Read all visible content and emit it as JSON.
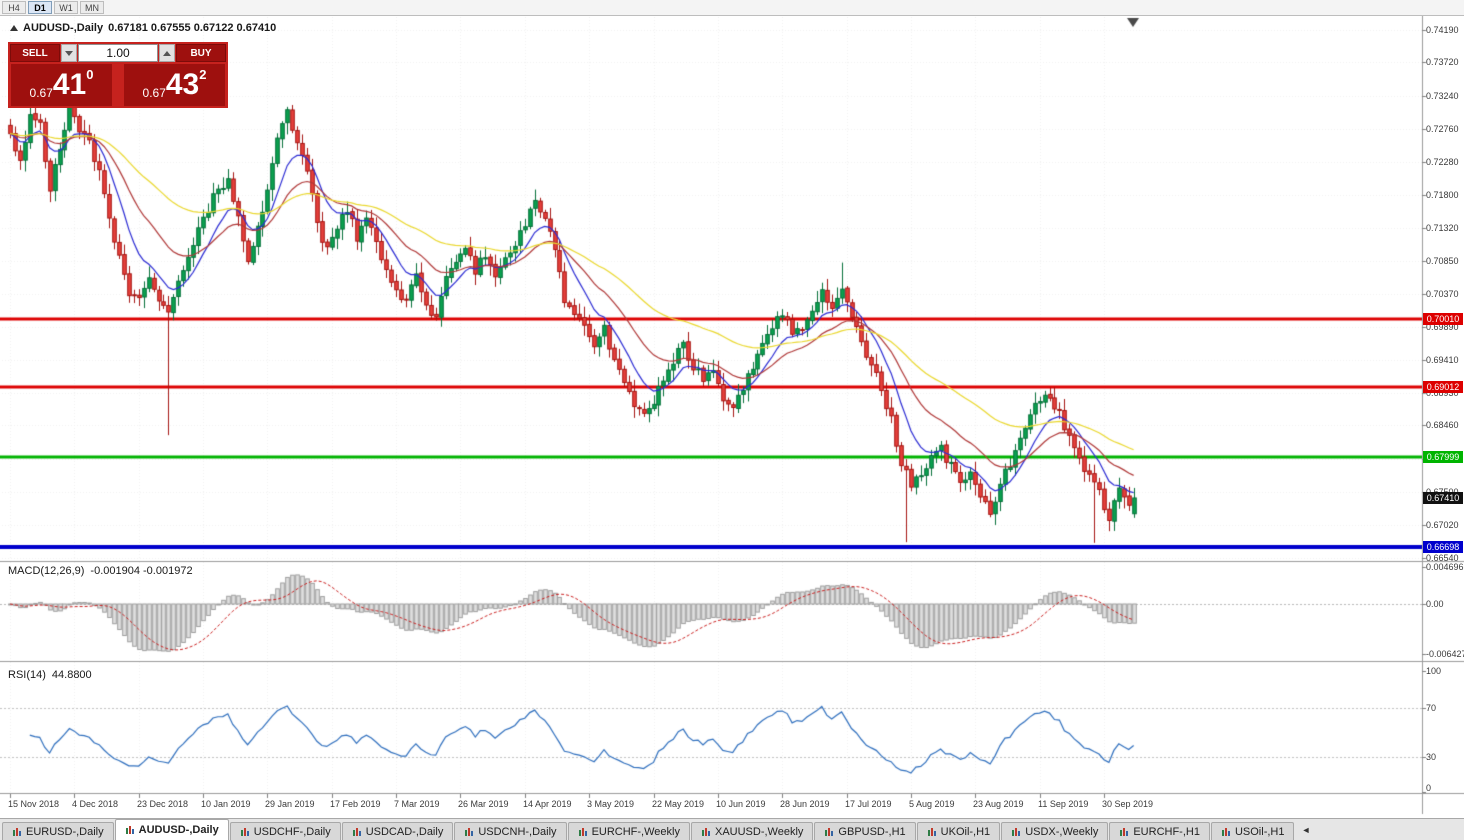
{
  "toolbar": {
    "periods": [
      "H4",
      "D1",
      "W1",
      "MN"
    ],
    "active_period": "D1"
  },
  "header": {
    "symbol": "AUDUSD-,Daily",
    "ohlc": "0.67181 0.67555 0.67122 0.67410"
  },
  "trade_panel": {
    "sell_label": "SELL",
    "buy_label": "BUY",
    "volume": "1.00",
    "sell_price": {
      "prefix": "0.67",
      "big": "41",
      "sup": "0"
    },
    "buy_price": {
      "prefix": "0.67",
      "big": "43",
      "sup": "2"
    },
    "panel_color": "#c6221e",
    "box_color": "#9e100e"
  },
  "indicators": {
    "macd": {
      "label": "MACD(12,26,9)",
      "values": "-0.001904 -0.001972"
    },
    "rsi": {
      "label": "RSI(14)",
      "value": "44.8800"
    }
  },
  "tab_bar": {
    "scroll_left_icon": "◄",
    "tabs": [
      {
        "label": "EURUSD-,Daily",
        "active": false
      },
      {
        "label": "AUDUSD-,Daily",
        "active": true
      },
      {
        "label": "USDCHF-,Daily",
        "active": false
      },
      {
        "label": "USDCAD-,Daily",
        "active": false
      },
      {
        "label": "USDCNH-,Daily",
        "active": false
      },
      {
        "label": "EURCHF-,Weekly",
        "active": false
      },
      {
        "label": "XAUUSD-,Weekly",
        "active": false
      },
      {
        "label": "GBPUSD-,H1",
        "active": false
      },
      {
        "label": "UKOil-,H1",
        "active": false
      },
      {
        "label": "USDX-,Weekly",
        "active": false
      },
      {
        "label": "EURCHF-,H1",
        "active": false
      },
      {
        "label": "USOil-,H1",
        "active": false
      }
    ]
  },
  "chart_data": {
    "type": "candlestick",
    "symbol": "AUDUSD",
    "timeframe": "Daily",
    "last_ohlc": {
      "open": 0.67181,
      "high": 0.67555,
      "low": 0.67122,
      "close": 0.6741
    },
    "current_price": {
      "value": 0.6741,
      "label": "0.67410",
      "color": "#111111"
    },
    "y_axis": {
      "ticks": [
        "0.74190",
        "0.73720",
        "0.73240",
        "0.72760",
        "0.72280",
        "0.71800",
        "0.71320",
        "0.70850",
        "0.70370",
        "0.69890",
        "0.69410",
        "0.68930",
        "0.68460",
        "0.67980",
        "0.67500",
        "0.67020",
        "0.66540"
      ]
    },
    "x_axis": {
      "dates": [
        "15 Nov 2018",
        "4 Dec 2018",
        "23 Dec 2018",
        "10 Jan 2019",
        "29 Jan 2019",
        "17 Feb 2019",
        "7 Mar 2019",
        "26 Mar 2019",
        "14 Apr 2019",
        "3 May 2019",
        "22 May 2019",
        "10 Jun 2019",
        "28 Jun 2019",
        "17 Jul 2019",
        "5 Aug 2019",
        "23 Aug 2019",
        "11 Sep 2019",
        "30 Sep 2019"
      ],
      "candles_per_tick": 13
    },
    "levels": [
      {
        "value": 0.7001,
        "label": "0.70010",
        "color": "#dd0000",
        "width": 3
      },
      {
        "value": 0.69012,
        "label": "0.69012",
        "color": "#dd0000",
        "width": 3
      },
      {
        "value": 0.67999,
        "label": "0.67999",
        "color": "#00b400",
        "width": 3
      },
      {
        "value": 0.66698,
        "label": "0.66698",
        "color": "#0000cc",
        "width": 4
      }
    ],
    "candle_count": 228,
    "anchors": [
      [
        0,
        0.7265
      ],
      [
        2,
        0.723
      ],
      [
        4,
        0.7298
      ],
      [
        6,
        0.7282
      ],
      [
        8,
        0.719
      ],
      [
        10,
        0.7245
      ],
      [
        12,
        0.73
      ],
      [
        14,
        0.7278
      ],
      [
        16,
        0.7252
      ],
      [
        18,
        0.721
      ],
      [
        20,
        0.715
      ],
      [
        22,
        0.7085
      ],
      [
        24,
        0.7042
      ],
      [
        26,
        0.7035
      ],
      [
        28,
        0.7058
      ],
      [
        30,
        0.703
      ],
      [
        32,
        0.7005
      ],
      [
        33,
        0.703
      ],
      [
        35,
        0.7068
      ],
      [
        38,
        0.7125
      ],
      [
        41,
        0.7178
      ],
      [
        44,
        0.7205
      ],
      [
        46,
        0.7152
      ],
      [
        48,
        0.7088
      ],
      [
        50,
        0.7128
      ],
      [
        52,
        0.7192
      ],
      [
        54,
        0.7258
      ],
      [
        56,
        0.7296
      ],
      [
        58,
        0.7262
      ],
      [
        60,
        0.7218
      ],
      [
        62,
        0.714
      ],
      [
        64,
        0.7098
      ],
      [
        66,
        0.7132
      ],
      [
        68,
        0.7158
      ],
      [
        70,
        0.712
      ],
      [
        72,
        0.7148
      ],
      [
        74,
        0.7108
      ],
      [
        76,
        0.7068
      ],
      [
        78,
        0.7042
      ],
      [
        80,
        0.7022
      ],
      [
        82,
        0.7062
      ],
      [
        84,
        0.7025
      ],
      [
        86,
        0.7002
      ],
      [
        88,
        0.7058
      ],
      [
        90,
        0.7088
      ],
      [
        92,
        0.7108
      ],
      [
        94,
        0.7072
      ],
      [
        96,
        0.7092
      ],
      [
        98,
        0.7062
      ],
      [
        100,
        0.7082
      ],
      [
        102,
        0.7112
      ],
      [
        104,
        0.714
      ],
      [
        106,
        0.7165
      ],
      [
        108,
        0.7148
      ],
      [
        110,
        0.7098
      ],
      [
        112,
        0.703
      ],
      [
        114,
        0.7
      ],
      [
        116,
        0.6988
      ],
      [
        118,
        0.6962
      ],
      [
        120,
        0.6988
      ],
      [
        122,
        0.694
      ],
      [
        124,
        0.6902
      ],
      [
        126,
        0.688
      ],
      [
        128,
        0.6865
      ],
      [
        130,
        0.6882
      ],
      [
        132,
        0.6908
      ],
      [
        134,
        0.6938
      ],
      [
        136,
        0.6962
      ],
      [
        138,
        0.6932
      ],
      [
        140,
        0.6912
      ],
      [
        142,
        0.6928
      ],
      [
        144,
        0.6882
      ],
      [
        146,
        0.6868
      ],
      [
        148,
        0.6898
      ],
      [
        150,
        0.6932
      ],
      [
        152,
        0.6968
      ],
      [
        154,
        0.6992
      ],
      [
        156,
        0.7008
      ],
      [
        158,
        0.6978
      ],
      [
        160,
        0.6992
      ],
      [
        162,
        0.7018
      ],
      [
        164,
        0.7038
      ],
      [
        166,
        0.7022
      ],
      [
        168,
        0.7048
      ],
      [
        170,
        0.7002
      ],
      [
        172,
        0.6968
      ],
      [
        174,
        0.6932
      ],
      [
        176,
        0.6902
      ],
      [
        178,
        0.6852
      ],
      [
        180,
        0.6792
      ],
      [
        182,
        0.6762
      ],
      [
        184,
        0.6778
      ],
      [
        186,
        0.6798
      ],
      [
        188,
        0.6812
      ],
      [
        190,
        0.6788
      ],
      [
        192,
        0.6762
      ],
      [
        194,
        0.6772
      ],
      [
        196,
        0.6748
      ],
      [
        198,
        0.6722
      ],
      [
        200,
        0.6758
      ],
      [
        202,
        0.6792
      ],
      [
        204,
        0.6832
      ],
      [
        206,
        0.6868
      ],
      [
        208,
        0.6888
      ],
      [
        210,
        0.6892
      ],
      [
        212,
        0.6862
      ],
      [
        214,
        0.6832
      ],
      [
        216,
        0.6802
      ],
      [
        218,
        0.6772
      ],
      [
        220,
        0.6748
      ],
      [
        222,
        0.6712
      ],
      [
        224,
        0.6748
      ],
      [
        226,
        0.6728
      ],
      [
        227,
        0.6741
      ]
    ],
    "wick_overrides": [
      {
        "i": 5,
        "high": 0.7338
      },
      {
        "i": 32,
        "low": 0.6832
      },
      {
        "i": 168,
        "high": 0.7082
      },
      {
        "i": 181,
        "low": 0.6677
      },
      {
        "i": 219,
        "low": 0.6676
      }
    ],
    "moving_averages": [
      {
        "type": "ema",
        "period": 9,
        "color": "#2b2bd4"
      },
      {
        "type": "ema",
        "period": 21,
        "color": "#b03838"
      },
      {
        "type": "ema",
        "period": 50,
        "color": "#ead82e"
      }
    ],
    "colors": {
      "up": "#0ba14f",
      "up_border": "#06713a",
      "down": "#e5403c",
      "down_border": "#a61613",
      "macd_bar_fill": "#e0e0e0",
      "macd_bar_border": "#9e9e9e",
      "macd_signal": "#cc2222",
      "rsi_line": "#2f6fbe"
    },
    "macd_axis": [
      {
        "label": "0.004696",
        "value": 0.004696
      },
      {
        "label": "0.00",
        "value": 0
      },
      {
        "label": "-0.006427",
        "value": -0.006427
      }
    ],
    "rsi_axis": [
      {
        "label": "100",
        "value": 100
      },
      {
        "label": "70",
        "value": 70
      },
      {
        "label": "30",
        "value": 30
      },
      {
        "label": "0",
        "value": 0
      }
    ],
    "rsi_levels": [
      70,
      30
    ]
  }
}
